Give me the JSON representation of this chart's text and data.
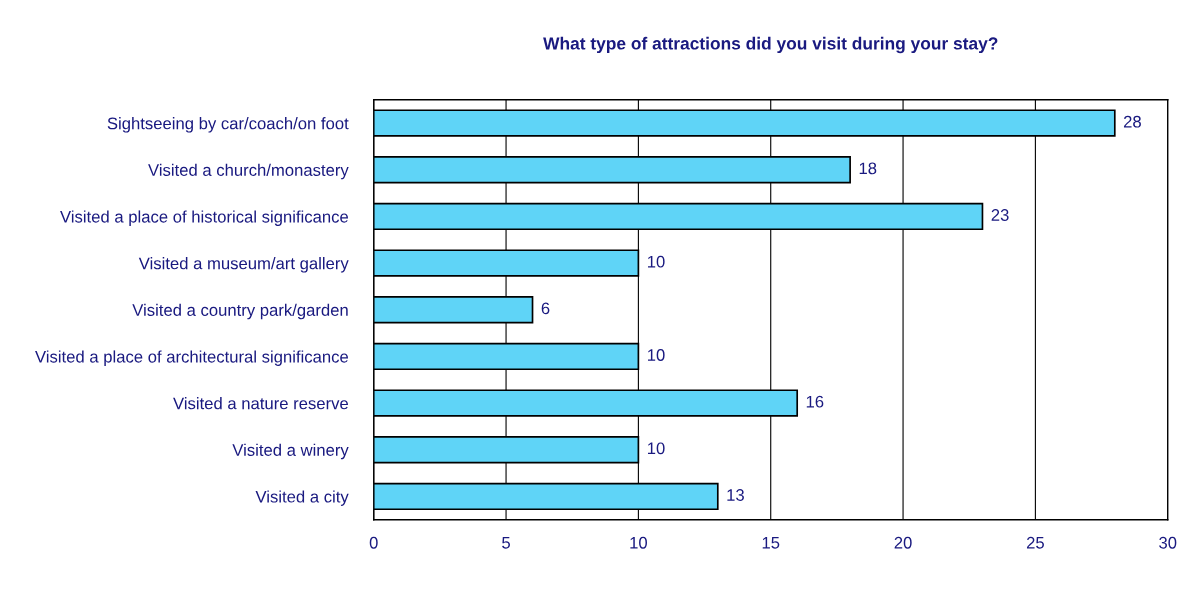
{
  "chart_data": {
    "type": "bar",
    "orientation": "horizontal",
    "title": "What type of attractions did you visit during your stay?",
    "categories": [
      "Sightseeing by car/coach/on foot",
      "Visited a church/monastery",
      "Visited a place of historical significance",
      "Visited a museum/art gallery",
      "Visited a country park/garden",
      "Visited a place of architectural significance",
      "Visited a nature reserve",
      "Visited a winery",
      "Visited a city"
    ],
    "values": [
      28,
      18,
      23,
      10,
      6,
      10,
      16,
      10,
      13
    ],
    "color": "#5fd4f7",
    "xlim": [
      0,
      30
    ],
    "xticks": [
      0,
      5,
      10,
      15,
      20,
      25,
      30
    ],
    "grid": "x",
    "data_labels": true,
    "legend": false
  }
}
